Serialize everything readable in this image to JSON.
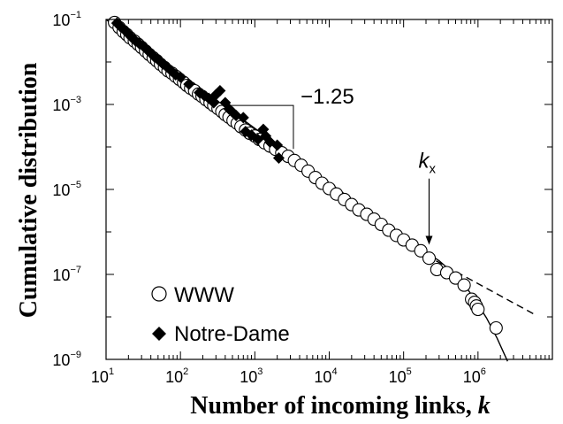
{
  "chart_data": {
    "type": "scatter",
    "title": "",
    "xlabel": "Number of incoming links, ",
    "xlabel_var": "k",
    "ylabel": "Cumulative distribution",
    "x_scale": "log",
    "y_scale": "log",
    "xlim": [
      10,
      10000000
    ],
    "ylim": [
      1e-09,
      0.1
    ],
    "x_tick_values": [
      10,
      100,
      1000,
      10000,
      100000,
      1000000
    ],
    "x_tick_labels": [
      {
        "base": "10",
        "exp": "1"
      },
      {
        "base": "10",
        "exp": "2"
      },
      {
        "base": "10",
        "exp": "3"
      },
      {
        "base": "10",
        "exp": "4"
      },
      {
        "base": "10",
        "exp": "5"
      },
      {
        "base": "10",
        "exp": "6"
      }
    ],
    "y_tick_values": [
      1e-09,
      1e-07,
      1e-05,
      0.001,
      0.1
    ],
    "y_tick_labels": [
      {
        "base": "10",
        "exp": "−9"
      },
      {
        "base": "10",
        "exp": "−7"
      },
      {
        "base": "10",
        "exp": "−5"
      },
      {
        "base": "10",
        "exp": "−3"
      },
      {
        "base": "10",
        "exp": "−1"
      }
    ],
    "grid": false,
    "legend_position": "bottom-left",
    "series": [
      {
        "name": "WWW",
        "marker": "open-circle",
        "points": [
          [
            13,
            0.085
          ],
          [
            15,
            0.065
          ],
          [
            17,
            0.052
          ],
          [
            19,
            0.044
          ],
          [
            21,
            0.037
          ],
          [
            24,
            0.031
          ],
          [
            27,
            0.026
          ],
          [
            30,
            0.022
          ],
          [
            34,
            0.018
          ],
          [
            38,
            0.015
          ],
          [
            43,
            0.0125
          ],
          [
            48,
            0.0107
          ],
          [
            54,
            0.0088
          ],
          [
            61,
            0.0074
          ],
          [
            68,
            0.0062
          ],
          [
            77,
            0.0054
          ],
          [
            86,
            0.0046
          ],
          [
            97,
            0.0039
          ],
          [
            110,
            0.0033
          ],
          [
            122,
            0.0028
          ],
          [
            137,
            0.0024
          ],
          [
            155,
            0.0021
          ],
          [
            175,
            0.00175
          ],
          [
            195,
            0.00155
          ],
          [
            220,
            0.0013
          ],
          [
            250,
            0.0011
          ],
          [
            280,
            0.00095
          ],
          [
            320,
            0.0008
          ],
          [
            360,
            0.00068
          ],
          [
            400,
            0.00058
          ],
          [
            450,
            0.0005
          ],
          [
            510,
            0.00042
          ],
          [
            580,
            0.00036
          ],
          [
            650,
            0.0003
          ],
          [
            750,
            0.00025
          ],
          [
            850,
            0.00021
          ],
          [
            1000,
            0.00018
          ],
          [
            1150,
            0.00015
          ],
          [
            1350,
            0.000125
          ],
          [
            1600,
            0.000105
          ],
          [
            1900,
            8.8e-05
          ],
          [
            2300,
            7.3e-05
          ],
          [
            2800,
            6e-05
          ],
          [
            3400,
            4.8e-05
          ],
          [
            4200,
            3.7e-05
          ],
          [
            5200,
            2.7e-05
          ],
          [
            6500,
            1.9e-05
          ],
          [
            8000,
            1.4e-05
          ],
          [
            10000,
            1.05e-05
          ],
          [
            12500,
            7.8e-06
          ],
          [
            16000,
            5.8e-06
          ],
          [
            20000,
            4.4e-06
          ],
          [
            25000,
            3.3e-06
          ],
          [
            32000,
            2.6e-06
          ],
          [
            40000,
            2e-06
          ],
          [
            50000,
            1.5e-06
          ],
          [
            63000,
            1.1e-06
          ],
          [
            80000,
            8.3e-07
          ],
          [
            100000,
            6.5e-07
          ],
          [
            130000,
            4.9e-07
          ],
          [
            170000,
            3.6e-07
          ],
          [
            220000,
            2.4e-07
          ],
          [
            280000,
            1.3e-07
          ],
          [
            380000,
            1.1e-07
          ],
          [
            500000,
            8.2e-08
          ],
          [
            650000,
            5.6e-08
          ],
          [
            820000,
            2.6e-08
          ],
          [
            900000,
            2.2e-08
          ],
          [
            950000,
            1.8e-08
          ],
          [
            1000000,
            1.5e-08
          ],
          [
            1750000,
            5.5e-09
          ]
        ]
      },
      {
        "name": "Notre-Dame",
        "marker": "filled-diamond",
        "points": [
          [
            14,
            0.082
          ],
          [
            16,
            0.065
          ],
          [
            18,
            0.055
          ],
          [
            20,
            0.045
          ],
          [
            22,
            0.038
          ],
          [
            25,
            0.031
          ],
          [
            28,
            0.027
          ],
          [
            32,
            0.023
          ],
          [
            36,
            0.019
          ],
          [
            40,
            0.016
          ],
          [
            45,
            0.013
          ],
          [
            51,
            0.011
          ],
          [
            58,
            0.009
          ],
          [
            66,
            0.0076
          ],
          [
            75,
            0.0062
          ],
          [
            86,
            0.005
          ],
          [
            100,
            0.0044
          ],
          [
            130,
            0.003
          ],
          [
            180,
            0.0019
          ],
          [
            210,
            0.0016
          ],
          [
            240,
            0.0014
          ],
          [
            280,
            0.0011
          ],
          [
            300,
            0.0017
          ],
          [
            340,
            0.0021
          ],
          [
            400,
            0.0011
          ],
          [
            450,
            0.00078
          ],
          [
            500,
            0.00066
          ],
          [
            560,
            0.00055
          ],
          [
            700,
            0.00049
          ],
          [
            750,
            0.00023
          ],
          [
            900,
            0.00019
          ],
          [
            1100,
            0.00015
          ],
          [
            1300,
            0.00026
          ],
          [
            1400,
            0.00018
          ],
          [
            1600,
            0.00013
          ],
          [
            2000,
            0.00011
          ],
          [
            2100,
            5.5e-05
          ]
        ]
      }
    ],
    "fit_solid": [
      [
        10,
        0.1
      ],
      [
        100000,
        7.5e-07
      ],
      [
        300000,
        2.1e-07
      ],
      [
        600000,
        7.2e-08
      ],
      [
        900000,
        2.6e-08
      ],
      [
        1300000,
        9.5e-09
      ],
      [
        1800000,
        3.2e-09
      ],
      [
        2500000,
        9e-10
      ]
    ],
    "fit_dashed": [
      [
        200000,
        2.8e-07
      ],
      [
        6000000,
        1.1e-08
      ]
    ],
    "slope_annotation": {
      "text": "−1.25",
      "slope": -1.25,
      "triangle": [
        [
          400,
          0.00095
        ],
        [
          3300,
          0.00095
        ],
        [
          3300,
          9e-05
        ]
      ]
    },
    "kx_annotation": {
      "main": "k",
      "sub": "x",
      "x": 220000,
      "arrow_from_y": 1.8e-05,
      "arrow_to_y": 5e-07
    }
  }
}
